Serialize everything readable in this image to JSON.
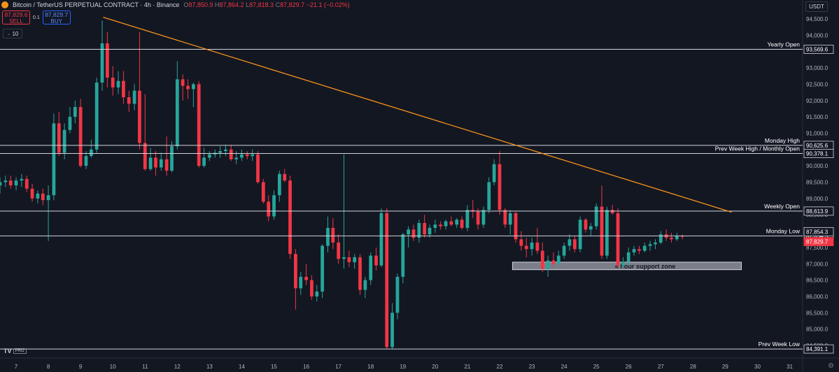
{
  "header": {
    "title": "Bitcoin / TetherUS PERPETUAL CONTRACT · 4h · Binance",
    "open_label": "O",
    "open": "87,850.9",
    "high_label": "H",
    "high": "87,864.2",
    "low_label": "L",
    "low": "87,818.3",
    "close_label": "C",
    "close": "87,829.7",
    "change": "−21.1 (−0.02%)"
  },
  "trade": {
    "sell_price": "87,829.6",
    "sell_label": "SELL",
    "spread": "0.1",
    "buy_price": "87,829.7",
    "buy_label": "BUY",
    "lots": "10"
  },
  "currency": "USDT",
  "brand": {
    "logo_text": "TV",
    "badge": "PRO"
  },
  "icons": {
    "settings": "gear-icon",
    "symbol": "bitcoin-logo-icon"
  },
  "colors": {
    "background": "#131722",
    "up": "#26a69a",
    "down": "#f23645",
    "trendline": "#f7931a",
    "level_line": "#d1d4dc",
    "axis_text": "#b2b5be"
  },
  "chart_data": {
    "type": "candlestick",
    "timeframe": "4h",
    "ylim": [
      84000,
      95000
    ],
    "y_ticks": [
      84500,
      85000,
      85500,
      86000,
      86500,
      87000,
      87500,
      88000,
      88500,
      89000,
      89500,
      90000,
      90500,
      91000,
      91500,
      92000,
      92500,
      93000,
      93500,
      94000,
      94500
    ],
    "y_tick_labels": [
      "84,500.0",
      "85,000.0",
      "85,500.0",
      "86,000.0",
      "86,500.0",
      "87,000.0",
      "87,500.0",
      "88,000.0",
      "88,500.0",
      "89,000.0",
      "89,500.0",
      "90,000.0",
      "90,500.0",
      "91,000.0",
      "91,500.0",
      "92,000.0",
      "92,500.0",
      "93,000.0",
      "93,500.0",
      "94,000.0",
      "94,500.0"
    ],
    "x_ticks": [
      "7",
      "8",
      "9",
      "10",
      "11",
      "12",
      "13",
      "14",
      "15",
      "16",
      "17",
      "18",
      "19",
      "20",
      "21",
      "22",
      "23",
      "24",
      "25",
      "26",
      "27",
      "28",
      "29",
      "30",
      "31"
    ],
    "x_tick_days": [
      7,
      8,
      9,
      10,
      11,
      12,
      13,
      14,
      15,
      16,
      17,
      18,
      19,
      20,
      21,
      22,
      23,
      24,
      25,
      26,
      27,
      28,
      29,
      30,
      31
    ],
    "xlim_days": [
      6.5,
      31.4
    ],
    "levels": [
      {
        "name": "Yearly Open",
        "value": 93569.6,
        "label": "93,569.6"
      },
      {
        "name": "Monday High",
        "value": 90625.6,
        "label": "90,625.6"
      },
      {
        "name": "Prev Week High / Monthly Open",
        "value": 90378.1,
        "label": "90,378.1"
      },
      {
        "name": "Weekly Open",
        "value": 88613.9,
        "label": "88,613.9"
      },
      {
        "name": "Monday Low",
        "value": 87854.3,
        "label": "87,854.3"
      },
      {
        "name": "Prev Week Low",
        "value": 84391.1,
        "label": "84,391.1"
      }
    ],
    "price_tags": [
      {
        "value": 87854.3,
        "label": "87,854.3",
        "style": "plain"
      },
      {
        "value": 87829.7,
        "label": "87,829.7",
        "style": "last"
      }
    ],
    "trendline": {
      "from": {
        "day": 9.7,
        "price": 94550
      },
      "to": {
        "day": 29.2,
        "price": 88580
      }
    },
    "zone": {
      "label": "4 hour support zone",
      "from_day": 22.4,
      "to_day": 29.5,
      "top": 87050,
      "bottom": 86820
    },
    "candles": [
      [
        6.5,
        89400,
        89650,
        89150,
        89500
      ],
      [
        6.67,
        89500,
        89700,
        89350,
        89550
      ],
      [
        6.83,
        89550,
        89700,
        89300,
        89400
      ],
      [
        7.0,
        89400,
        89650,
        89250,
        89550
      ],
      [
        7.17,
        89550,
        89750,
        89350,
        89600
      ],
      [
        7.33,
        89600,
        89700,
        89200,
        89300
      ],
      [
        7.5,
        89300,
        89450,
        88900,
        89000
      ],
      [
        7.67,
        89000,
        89250,
        88850,
        89150
      ],
      [
        7.83,
        89150,
        89300,
        88800,
        88950
      ],
      [
        8.0,
        88950,
        89400,
        87700,
        89100
      ],
      [
        8.17,
        89100,
        91600,
        88950,
        91300
      ],
      [
        8.33,
        91300,
        91650,
        90300,
        90400
      ],
      [
        8.5,
        90400,
        91300,
        90200,
        91100
      ],
      [
        8.67,
        91100,
        91800,
        91000,
        91500
      ],
      [
        8.83,
        91500,
        92000,
        91300,
        91800
      ],
      [
        9.0,
        91800,
        92050,
        89950,
        90000
      ],
      [
        9.17,
        90000,
        90450,
        89900,
        90300
      ],
      [
        9.33,
        90300,
        90800,
        90250,
        90500
      ],
      [
        9.5,
        90500,
        92700,
        90400,
        92550
      ],
      [
        9.67,
        92550,
        94450,
        92300,
        93750
      ],
      [
        9.83,
        93750,
        94100,
        92400,
        92700
      ],
      [
        10.0,
        92700,
        93050,
        92150,
        92400
      ],
      [
        10.17,
        92400,
        92900,
        92200,
        92600
      ],
      [
        10.33,
        92600,
        92900,
        91900,
        92100
      ],
      [
        10.5,
        92100,
        92300,
        91650,
        91900
      ],
      [
        10.67,
        91900,
        92500,
        91700,
        92300
      ],
      [
        10.83,
        92300,
        94100,
        90500,
        90700
      ],
      [
        11.0,
        90700,
        92200,
        89850,
        89900
      ],
      [
        11.17,
        89900,
        90550,
        89850,
        90250
      ],
      [
        11.33,
        90250,
        90450,
        89700,
        89950
      ],
      [
        11.5,
        89950,
        90400,
        89850,
        90200
      ],
      [
        11.67,
        90200,
        90900,
        89700,
        89850
      ],
      [
        11.83,
        89850,
        90750,
        89800,
        90600
      ],
      [
        12.0,
        90600,
        93200,
        90500,
        92650
      ],
      [
        12.17,
        92650,
        92800,
        92000,
        92450
      ],
      [
        12.33,
        92450,
        92650,
        92050,
        92350
      ],
      [
        12.5,
        92350,
        92550,
        91800,
        92500
      ],
      [
        12.67,
        92500,
        92600,
        89950,
        90000
      ],
      [
        12.83,
        90000,
        90550,
        89950,
        90250
      ],
      [
        13.0,
        90250,
        90450,
        90150,
        90350
      ],
      [
        13.17,
        90350,
        90500,
        90250,
        90400
      ],
      [
        13.33,
        90400,
        90600,
        90250,
        90450
      ],
      [
        13.5,
        90450,
        90650,
        90300,
        90500
      ],
      [
        13.67,
        90500,
        90650,
        90150,
        90200
      ],
      [
        13.83,
        90200,
        90450,
        90050,
        90250
      ],
      [
        14.0,
        90250,
        90500,
        90150,
        90350
      ],
      [
        14.17,
        90350,
        90450,
        90200,
        90300
      ],
      [
        14.33,
        90300,
        90500,
        90150,
        90350
      ],
      [
        14.5,
        90350,
        90450,
        89450,
        89500
      ],
      [
        14.67,
        89500,
        89600,
        88850,
        88900
      ],
      [
        14.83,
        88900,
        89100,
        88300,
        88450
      ],
      [
        15.0,
        88450,
        89250,
        88350,
        89100
      ],
      [
        15.17,
        89100,
        89850,
        88900,
        89750
      ],
      [
        15.33,
        89750,
        89900,
        89500,
        89550
      ],
      [
        15.5,
        89550,
        89700,
        87150,
        87300
      ],
      [
        15.67,
        87300,
        87450,
        85600,
        86250
      ],
      [
        15.83,
        86250,
        86750,
        86050,
        86600
      ],
      [
        16.0,
        86600,
        87000,
        86350,
        86500
      ],
      [
        16.17,
        86500,
        86650,
        85900,
        86000
      ],
      [
        16.33,
        86000,
        86350,
        85850,
        86150
      ],
      [
        16.5,
        86150,
        87600,
        85950,
        87550
      ],
      [
        16.67,
        87550,
        88450,
        87350,
        88100
      ],
      [
        16.83,
        88100,
        88400,
        87450,
        87650
      ],
      [
        17.0,
        87650,
        87900,
        87000,
        87150
      ],
      [
        17.17,
        87150,
        90350,
        86850,
        87200
      ],
      [
        17.33,
        87200,
        87400,
        86900,
        87050
      ],
      [
        17.5,
        87050,
        87300,
        86850,
        87200
      ],
      [
        17.67,
        87200,
        87300,
        86050,
        86200
      ],
      [
        17.83,
        86200,
        86600,
        85950,
        86500
      ],
      [
        18.0,
        86500,
        87350,
        86350,
        87250
      ],
      [
        18.17,
        87250,
        87500,
        86800,
        86950
      ],
      [
        18.33,
        86950,
        88700,
        86900,
        88550
      ],
      [
        18.5,
        88550,
        88700,
        84400,
        84450
      ],
      [
        18.67,
        84450,
        85800,
        84400,
        85500
      ],
      [
        18.83,
        85500,
        86700,
        85300,
        86600
      ],
      [
        19.0,
        86600,
        87950,
        86400,
        87900
      ],
      [
        19.17,
        87900,
        88150,
        87500,
        88050
      ],
      [
        19.33,
        88050,
        88200,
        87700,
        87800
      ],
      [
        19.5,
        87800,
        88350,
        87650,
        88250
      ],
      [
        19.67,
        88250,
        88500,
        87800,
        87900
      ],
      [
        19.83,
        87900,
        88200,
        87800,
        88100
      ],
      [
        20.0,
        88100,
        88350,
        87950,
        88200
      ],
      [
        20.17,
        88200,
        88300,
        88050,
        88150
      ],
      [
        20.33,
        88150,
        88350,
        88050,
        88300
      ],
      [
        20.5,
        88300,
        88450,
        88150,
        88200
      ],
      [
        20.67,
        88200,
        88400,
        88100,
        88350
      ],
      [
        20.83,
        88350,
        88450,
        88050,
        88100
      ],
      [
        21.0,
        88100,
        88800,
        88000,
        88650
      ],
      [
        21.17,
        88650,
        88950,
        88400,
        88600
      ],
      [
        21.33,
        88600,
        88700,
        88050,
        88200
      ],
      [
        21.5,
        88200,
        88750,
        88100,
        88650
      ],
      [
        21.67,
        88650,
        89650,
        88550,
        89500
      ],
      [
        21.83,
        89500,
        90200,
        89400,
        90050
      ],
      [
        22.0,
        90050,
        90450,
        88500,
        88650
      ],
      [
        22.17,
        88650,
        88700,
        88100,
        88200
      ],
      [
        22.33,
        88200,
        88650,
        87900,
        88550
      ],
      [
        22.5,
        88550,
        88600,
        87650,
        87750
      ],
      [
        22.67,
        87750,
        88000,
        87400,
        87550
      ],
      [
        22.83,
        87550,
        87800,
        87200,
        87450
      ],
      [
        23.0,
        87450,
        87800,
        87250,
        87650
      ],
      [
        23.17,
        87650,
        88100,
        87300,
        87400
      ],
      [
        23.33,
        87400,
        87650,
        86750,
        86850
      ],
      [
        23.5,
        86850,
        87250,
        86600,
        87100
      ],
      [
        23.67,
        87100,
        87350,
        86900,
        87000
      ],
      [
        23.83,
        87000,
        87400,
        86950,
        87250
      ],
      [
        24.0,
        87250,
        87650,
        87150,
        87550
      ],
      [
        24.17,
        87550,
        87900,
        87400,
        87750
      ],
      [
        24.33,
        87750,
        87850,
        87350,
        87450
      ],
      [
        24.5,
        87450,
        88450,
        87350,
        88350
      ],
      [
        24.67,
        88350,
        88400,
        87950,
        88050
      ],
      [
        24.83,
        88050,
        88250,
        87850,
        88150
      ],
      [
        25.0,
        88150,
        88850,
        88050,
        88750
      ],
      [
        25.17,
        88750,
        89400,
        87150,
        87250
      ],
      [
        25.33,
        87250,
        88750,
        87150,
        88650
      ],
      [
        25.5,
        88650,
        88800,
        88500,
        88550
      ],
      [
        25.67,
        88550,
        88700,
        86850,
        86950
      ],
      [
        25.83,
        86950,
        87200,
        86850,
        87050
      ],
      [
        26.0,
        87050,
        87500,
        86950,
        87350
      ],
      [
        26.17,
        87350,
        87550,
        87250,
        87450
      ],
      [
        26.33,
        87450,
        87550,
        87300,
        87400
      ],
      [
        26.5,
        87400,
        87650,
        87350,
        87550
      ],
      [
        26.67,
        87550,
        87700,
        87400,
        87600
      ],
      [
        26.83,
        87600,
        87750,
        87450,
        87650
      ],
      [
        27.0,
        87650,
        88000,
        87600,
        87900
      ],
      [
        27.17,
        87900,
        88050,
        87700,
        87800
      ],
      [
        27.33,
        87800,
        87950,
        87650,
        87750
      ],
      [
        27.5,
        87750,
        87950,
        87700,
        87850
      ],
      [
        27.67,
        87850,
        87900,
        87750,
        87830
      ]
    ]
  }
}
